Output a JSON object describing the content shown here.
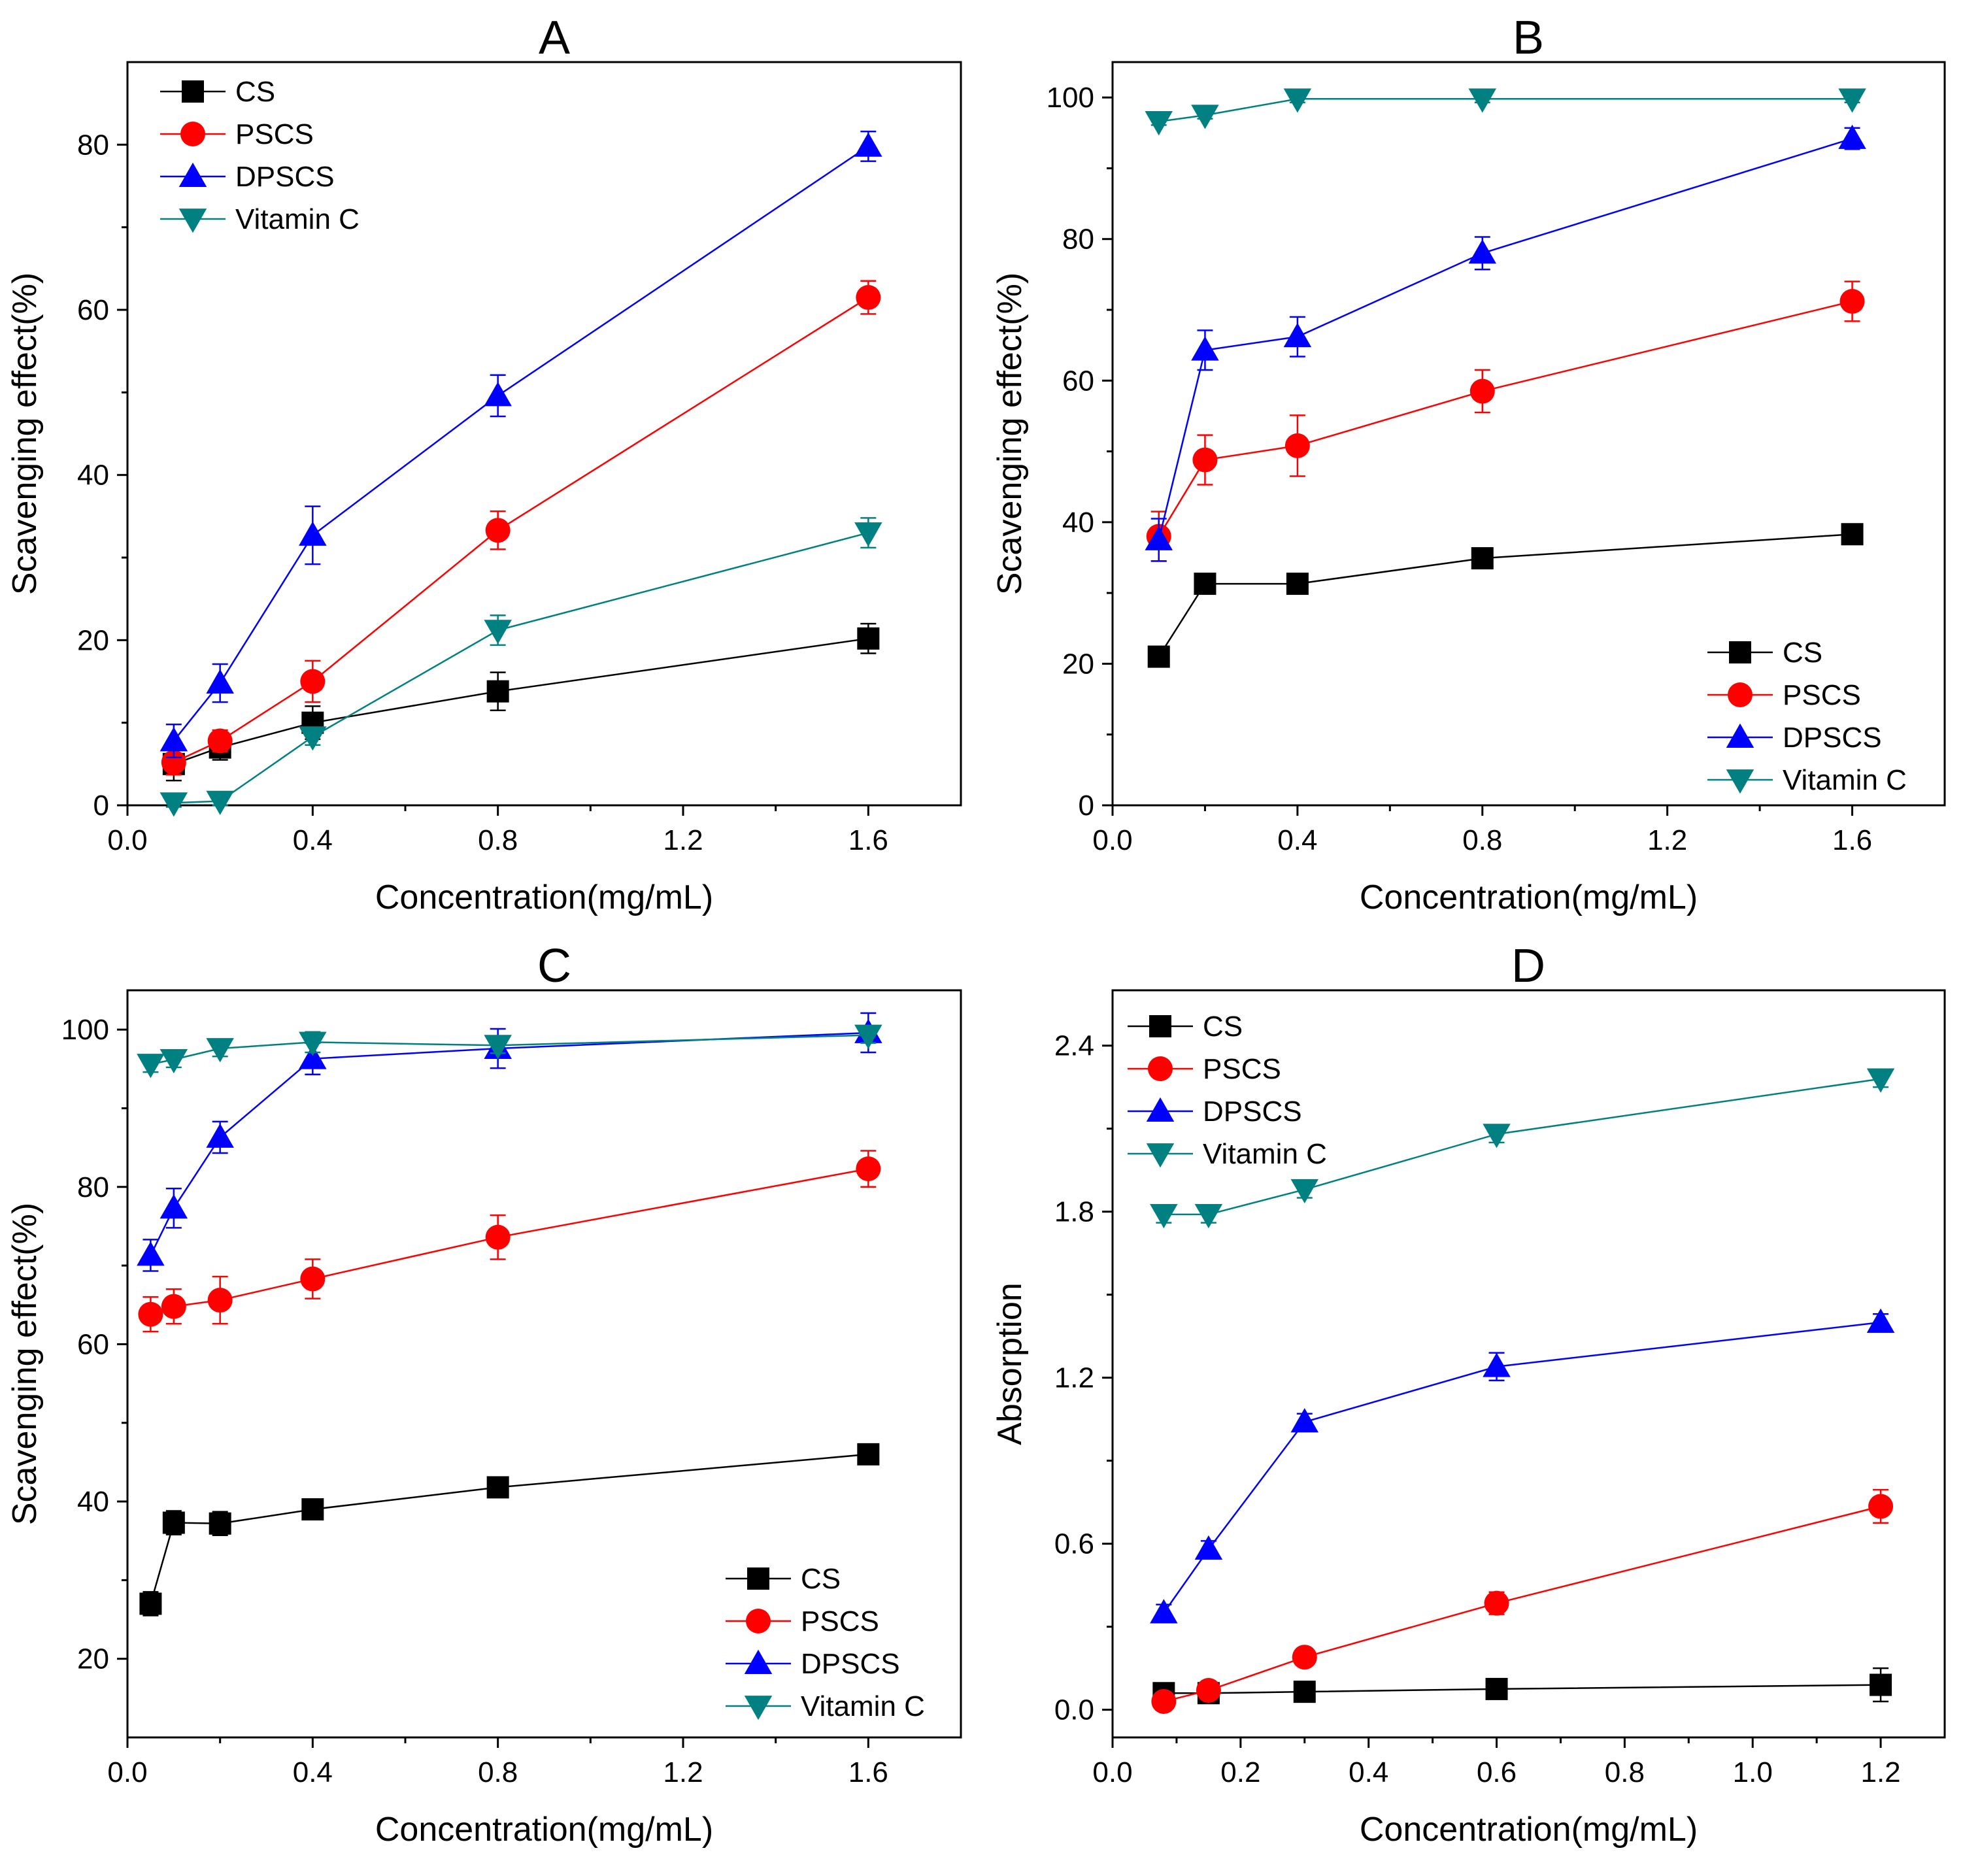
{
  "chart_data": [
    {
      "type": "line",
      "title": "A",
      "xlabel": "Concentration(mg/mL)",
      "ylabel": "Scavenging effect(%)",
      "xlim": [
        0.0,
        1.8
      ],
      "ylim": [
        0,
        90
      ],
      "xticks": [
        0.0,
        0.4,
        0.8,
        1.2,
        1.6
      ],
      "xtick_labels": [
        "0.0",
        "0.4",
        "0.8",
        "1.2",
        "1.6"
      ],
      "yticks": [
        0,
        20,
        40,
        60,
        80
      ],
      "ytick_labels": [
        "0",
        "20",
        "40",
        "60",
        "80"
      ],
      "legend_position": "top-left",
      "series": [
        {
          "name": "CS",
          "color": "#000000",
          "marker": "square",
          "x": [
            0.1,
            0.2,
            0.4,
            0.8,
            1.6
          ],
          "values": [
            5.0,
            7.0,
            10.0,
            13.8,
            20.2
          ],
          "errors": [
            2.0,
            1.5,
            2.0,
            2.3,
            1.8
          ]
        },
        {
          "name": "PSCS",
          "color": "#ff0000",
          "marker": "circle",
          "x": [
            0.1,
            0.2,
            0.4,
            0.8,
            1.6
          ],
          "values": [
            5.2,
            7.8,
            15.0,
            33.3,
            61.5
          ],
          "errors": [
            1.5,
            1.3,
            2.5,
            2.3,
            2.0
          ]
        },
        {
          "name": "DPSCS",
          "color": "#0000ff",
          "marker": "triangle-up",
          "x": [
            0.1,
            0.2,
            0.4,
            0.8,
            1.6
          ],
          "values": [
            7.8,
            14.8,
            32.7,
            49.6,
            79.8
          ],
          "errors": [
            2.0,
            2.3,
            3.5,
            2.5,
            1.8
          ]
        },
        {
          "name": "Vitamin C",
          "color": "#008080",
          "marker": "triangle-down",
          "x": [
            0.1,
            0.2,
            0.4,
            0.8,
            1.6
          ],
          "values": [
            0.3,
            0.5,
            8.3,
            21.2,
            33.0
          ],
          "errors": [
            0.5,
            0.5,
            1.0,
            1.8,
            1.8
          ]
        }
      ]
    },
    {
      "type": "line",
      "title": "B",
      "xlabel": "Concentration(mg/mL)",
      "ylabel": "Scavenging effect(%)",
      "xlim": [
        0.0,
        1.8
      ],
      "ylim": [
        0,
        105
      ],
      "xticks": [
        0.0,
        0.4,
        0.8,
        1.2,
        1.6
      ],
      "xtick_labels": [
        "0.0",
        "0.4",
        "0.8",
        "1.2",
        "1.6"
      ],
      "yticks": [
        0,
        20,
        40,
        60,
        80,
        100
      ],
      "ytick_labels": [
        "0",
        "20",
        "40",
        "60",
        "80",
        "100"
      ],
      "legend_position": "bottom-right",
      "series": [
        {
          "name": "CS",
          "color": "#000000",
          "marker": "square",
          "x": [
            0.1,
            0.2,
            0.4,
            0.8,
            1.6
          ],
          "values": [
            21.0,
            31.3,
            31.3,
            34.9,
            38.3
          ],
          "errors": [
            0.5,
            0.5,
            0.5,
            0.5,
            0.5
          ]
        },
        {
          "name": "PSCS",
          "color": "#ff0000",
          "marker": "circle",
          "x": [
            0.1,
            0.2,
            0.4,
            0.8,
            1.6
          ],
          "values": [
            38.0,
            48.8,
            50.8,
            58.5,
            71.2
          ],
          "errors": [
            3.5,
            3.5,
            4.3,
            3.0,
            2.8
          ]
        },
        {
          "name": "DPSCS",
          "color": "#0000ff",
          "marker": "triangle-up",
          "x": [
            0.1,
            0.2,
            0.4,
            0.8,
            1.6
          ],
          "values": [
            37.5,
            64.3,
            66.2,
            78.0,
            94.2
          ],
          "errors": [
            3.0,
            2.8,
            2.8,
            2.3,
            1.5
          ]
        },
        {
          "name": "Vitamin C",
          "color": "#008080",
          "marker": "triangle-down",
          "x": [
            0.1,
            0.2,
            0.4,
            0.8,
            1.6
          ],
          "values": [
            96.6,
            97.5,
            99.8,
            99.8,
            99.8
          ],
          "errors": [
            0.5,
            0.5,
            0.5,
            0.5,
            0.5
          ]
        }
      ]
    },
    {
      "type": "line",
      "title": "C",
      "xlabel": "Concentration(mg/mL)",
      "ylabel": "Scavenging effect(%)",
      "xlim": [
        0.0,
        1.8
      ],
      "ylim": [
        10,
        105
      ],
      "xticks": [
        0.0,
        0.4,
        0.8,
        1.2,
        1.6
      ],
      "xtick_labels": [
        "0.0",
        "0.4",
        "0.8",
        "1.2",
        "1.6"
      ],
      "yticks": [
        20,
        40,
        60,
        80,
        100
      ],
      "ytick_labels": [
        "20",
        "40",
        "60",
        "80",
        "100"
      ],
      "legend_position": "bottom-right",
      "series": [
        {
          "name": "CS",
          "color": "#000000",
          "marker": "square",
          "x": [
            0.05,
            0.1,
            0.2,
            0.4,
            0.8,
            1.6
          ],
          "values": [
            27.0,
            37.3,
            37.2,
            39.0,
            41.8,
            46.0
          ],
          "errors": [
            1.5,
            1.5,
            1.5,
            1.2,
            1.0,
            1.0
          ]
        },
        {
          "name": "PSCS",
          "color": "#ff0000",
          "marker": "circle",
          "x": [
            0.05,
            0.1,
            0.2,
            0.4,
            0.8,
            1.6
          ],
          "values": [
            63.8,
            64.8,
            65.6,
            68.3,
            73.6,
            82.3
          ],
          "errors": [
            2.2,
            2.2,
            3.0,
            2.5,
            2.8,
            2.3
          ]
        },
        {
          "name": "DPSCS",
          "color": "#0000ff",
          "marker": "triangle-up",
          "x": [
            0.05,
            0.1,
            0.2,
            0.4,
            0.8,
            1.6
          ],
          "values": [
            71.3,
            77.3,
            86.3,
            96.3,
            97.6,
            99.6
          ],
          "errors": [
            2.0,
            2.5,
            2.0,
            2.0,
            2.5,
            2.5
          ]
        },
        {
          "name": "Vitamin C",
          "color": "#008080",
          "marker": "triangle-down",
          "x": [
            0.05,
            0.1,
            0.2,
            0.4,
            0.8,
            1.6
          ],
          "values": [
            95.6,
            96.2,
            97.6,
            98.4,
            98.0,
            99.3
          ],
          "errors": [
            1.0,
            1.0,
            1.0,
            1.3,
            1.0,
            1.0
          ]
        }
      ]
    },
    {
      "type": "line",
      "title": "D",
      "xlabel": "Concentration(mg/mL)",
      "ylabel": "Absorption",
      "xlim": [
        0.0,
        1.3
      ],
      "ylim": [
        -0.1,
        2.6
      ],
      "xticks": [
        0.0,
        0.2,
        0.4,
        0.6,
        0.8,
        1.0,
        1.2
      ],
      "xtick_labels": [
        "0.0",
        "0.2",
        "0.4",
        "0.6",
        "0.8",
        "1.0",
        "1.2"
      ],
      "yticks": [
        0.0,
        0.6,
        1.2,
        1.8,
        2.4
      ],
      "ytick_labels": [
        "0.0",
        "0.6",
        "1.2",
        "1.8",
        "2.4"
      ],
      "legend_position": "top-left",
      "series": [
        {
          "name": "CS",
          "color": "#000000",
          "marker": "square",
          "x": [
            0.08,
            0.15,
            0.3,
            0.6,
            1.2
          ],
          "values": [
            0.06,
            0.06,
            0.065,
            0.075,
            0.09
          ],
          "errors": [
            0.02,
            0.02,
            0.02,
            0.02,
            0.06
          ]
        },
        {
          "name": "PSCS",
          "color": "#ff0000",
          "marker": "circle",
          "x": [
            0.08,
            0.15,
            0.3,
            0.6,
            1.2
          ],
          "values": [
            0.03,
            0.07,
            0.19,
            0.385,
            0.735
          ],
          "errors": [
            0.02,
            0.02,
            0.03,
            0.04,
            0.06
          ]
        },
        {
          "name": "DPSCS",
          "color": "#0000ff",
          "marker": "triangle-up",
          "x": [
            0.08,
            0.15,
            0.3,
            0.6,
            1.2
          ],
          "values": [
            0.35,
            0.58,
            1.04,
            1.24,
            1.4
          ],
          "errors": [
            0.03,
            0.03,
            0.03,
            0.05,
            0.03
          ]
        },
        {
          "name": "Vitamin C",
          "color": "#008080",
          "marker": "triangle-down",
          "x": [
            0.08,
            0.15,
            0.3,
            0.6,
            1.2
          ],
          "values": [
            1.79,
            1.79,
            1.88,
            2.08,
            2.28
          ],
          "errors": [
            0.03,
            0.03,
            0.03,
            0.03,
            0.03
          ]
        }
      ]
    }
  ]
}
